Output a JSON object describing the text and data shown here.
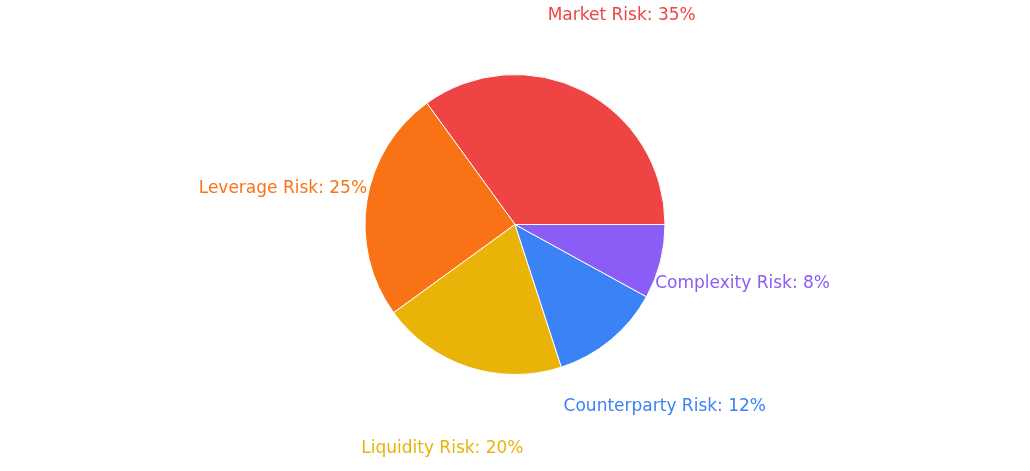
{
  "chart_data": {
    "type": "pie",
    "categories": [
      "Market Risk",
      "Leverage Risk",
      "Liquidity Risk",
      "Counterparty Risk",
      "Complexity Risk"
    ],
    "values": [
      35,
      25,
      20,
      12,
      8
    ],
    "value_labels": [
      "35%",
      "25%",
      "20%",
      "12%",
      "8%"
    ],
    "colors": [
      "#ef4444",
      "#f97316",
      "#eab308",
      "#3b82f6",
      "#8b5cf6"
    ]
  }
}
